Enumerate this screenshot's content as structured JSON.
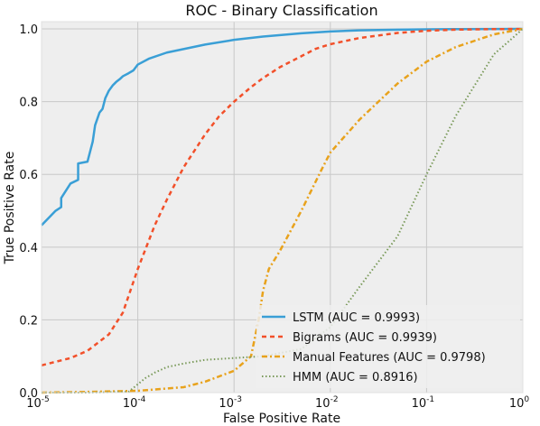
{
  "chart_data": {
    "type": "line",
    "title": "ROC - Binary Classification",
    "xlabel": "False Positive Rate",
    "ylabel": "True Positive Rate",
    "xscale": "log",
    "xlim": [
      1e-05,
      1
    ],
    "ylim": [
      0.0,
      1.02
    ],
    "x_ticks": [
      1e-05,
      0.0001,
      0.001,
      0.01,
      0.1,
      1
    ],
    "x_tick_labels": [
      {
        "base": "10",
        "exp": "-5"
      },
      {
        "base": "10",
        "exp": "-4"
      },
      {
        "base": "10",
        "exp": "-3"
      },
      {
        "base": "10",
        "exp": "-2"
      },
      {
        "base": "10",
        "exp": "-1"
      },
      {
        "base": "10",
        "exp": "0"
      }
    ],
    "y_ticks": [
      0.0,
      0.2,
      0.4,
      0.6,
      0.8,
      1.0
    ],
    "y_tick_labels": [
      "0.0",
      "0.2",
      "0.4",
      "0.6",
      "0.8",
      "1.0"
    ],
    "grid": true,
    "legend_position": "lower-right",
    "series": [
      {
        "name": "LSTM (AUC = 0.9993)",
        "color": "#3a9fd6",
        "style": "solid",
        "x": [
          1e-05,
          1.4e-05,
          1.6e-05,
          1.6e-05,
          2e-05,
          2.4e-05,
          2.4e-05,
          3e-05,
          3.4e-05,
          3.6e-05,
          4e-05,
          4.3e-05,
          4.6e-05,
          5e-05,
          5.5e-05,
          6e-05,
          6.5e-05,
          7e-05,
          8e-05,
          9e-05,
          0.0001,
          0.00013,
          0.0002,
          0.0005,
          0.001,
          0.002,
          0.005,
          0.01,
          0.02,
          0.05,
          0.1,
          0.2,
          0.5,
          1
        ],
        "y": [
          0.46,
          0.5,
          0.51,
          0.535,
          0.575,
          0.585,
          0.63,
          0.635,
          0.69,
          0.735,
          0.77,
          0.78,
          0.81,
          0.83,
          0.845,
          0.855,
          0.862,
          0.87,
          0.878,
          0.886,
          0.902,
          0.918,
          0.935,
          0.957,
          0.97,
          0.979,
          0.988,
          0.993,
          0.996,
          0.998,
          0.999,
          0.9995,
          0.9998,
          1.0
        ]
      },
      {
        "name": "Bigrams (AUC = 0.9939)",
        "color": "#f2502a",
        "style": "dashed",
        "x": [
          1e-05,
          2e-05,
          3e-05,
          5e-05,
          7e-05,
          0.0001,
          0.00015,
          0.0002,
          0.0003,
          0.0005,
          0.0007,
          0.001,
          0.0015,
          0.002,
          0.003,
          0.005,
          0.007,
          0.01,
          0.02,
          0.05,
          0.1,
          0.2,
          0.5,
          1
        ],
        "y": [
          0.075,
          0.095,
          0.115,
          0.16,
          0.22,
          0.34,
          0.46,
          0.53,
          0.62,
          0.71,
          0.76,
          0.8,
          0.84,
          0.865,
          0.895,
          0.925,
          0.945,
          0.958,
          0.975,
          0.989,
          0.995,
          0.998,
          0.9995,
          1.0
        ]
      },
      {
        "name": "Manual Features (AUC = 0.9798)",
        "color": "#e8a21c",
        "style": "dashdot",
        "x": [
          1e-05,
          3e-05,
          0.0001,
          0.0003,
          0.0005,
          0.001,
          0.0015,
          0.0018,
          0.002,
          0.0023,
          0.003,
          0.005,
          0.008,
          0.01,
          0.02,
          0.05,
          0.1,
          0.2,
          0.5,
          1
        ],
        "y": [
          0.0,
          0.002,
          0.005,
          0.015,
          0.03,
          0.06,
          0.1,
          0.2,
          0.28,
          0.34,
          0.39,
          0.5,
          0.61,
          0.66,
          0.75,
          0.85,
          0.91,
          0.95,
          0.985,
          1.0
        ]
      },
      {
        "name": "HMM (AUC = 0.8916)",
        "color": "#7a9a5a",
        "style": "dotted",
        "x": [
          1e-05,
          3e-05,
          8e-05,
          0.00012,
          0.00015,
          0.0002,
          0.0003,
          0.0005,
          0.001,
          0.002,
          0.005,
          0.01,
          0.02,
          0.05,
          0.1,
          0.2,
          0.5,
          1
        ],
        "y": [
          0.0,
          0.0,
          0.002,
          0.04,
          0.055,
          0.07,
          0.08,
          0.09,
          0.095,
          0.1,
          0.12,
          0.18,
          0.29,
          0.43,
          0.6,
          0.76,
          0.93,
          1.0
        ]
      }
    ]
  }
}
